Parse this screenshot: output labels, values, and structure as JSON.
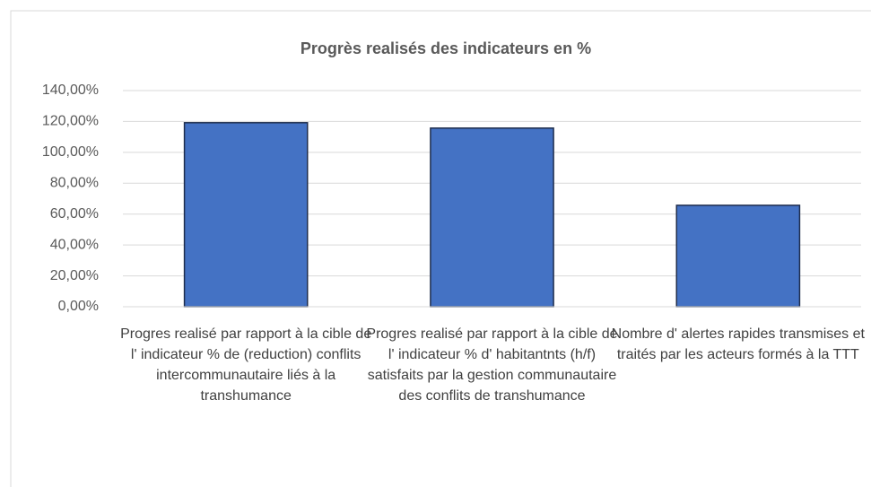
{
  "chart_data": {
    "type": "bar",
    "title": "Progrès realisés  des indicateurs en %",
    "categories": [
      "Progres realisé par rapport à la cible de l' indicateur % de (reduction) conflits intercommunautaire liés à la transhumance",
      "Progres realisé par rapport à la cible de l' indicateur % d' habitantnts (h/f) satisfaits par la gestion communautaire des conflits de transhumance",
      "Nombre d' alertes rapides transmises et traités par les acteurs formés à la TTT"
    ],
    "values": [
      119.2,
      115.7,
      65.7
    ],
    "color": "#4472c4",
    "ylim": [
      0,
      140
    ],
    "yticks": [
      {
        "value": 0,
        "label": "0,00%"
      },
      {
        "value": 20,
        "label": "20,00%"
      },
      {
        "value": 40,
        "label": "40,00%"
      },
      {
        "value": 60,
        "label": "60,00%"
      },
      {
        "value": 80,
        "label": "80,00%"
      },
      {
        "value": 100,
        "label": "100,00%"
      },
      {
        "value": 120,
        "label": "120,00%"
      },
      {
        "value": 140,
        "label": "140,00%"
      }
    ],
    "grid": true
  }
}
